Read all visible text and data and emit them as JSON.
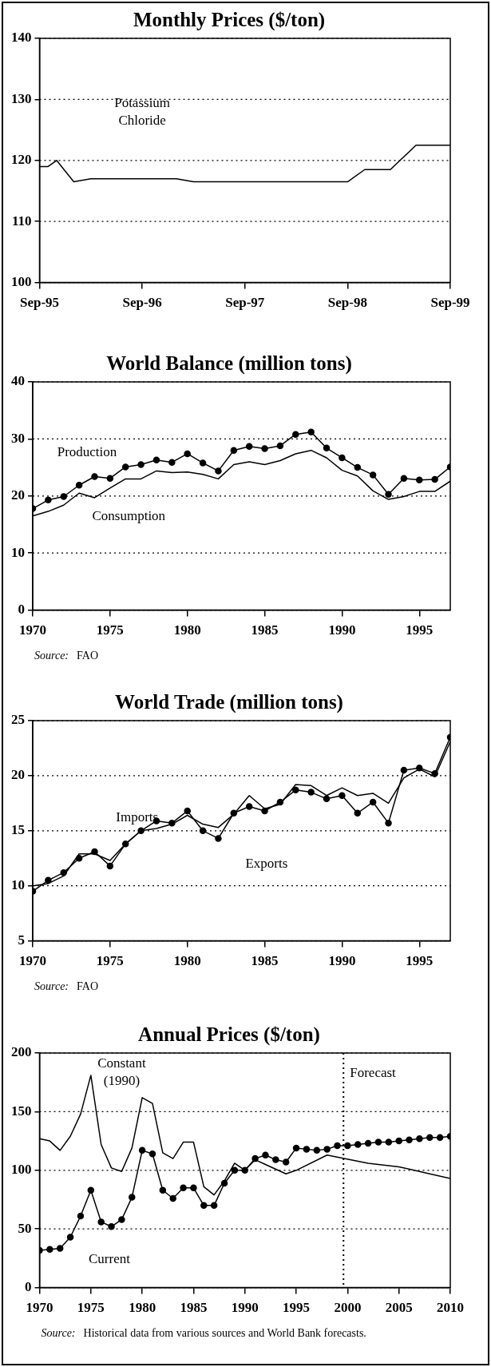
{
  "chart_data": [
    {
      "type": "line",
      "title": "Monthly Prices ($/ton)",
      "xlim": [
        "1995-09",
        "1999-09"
      ],
      "xticks": [
        {
          "value": "1995-09",
          "label": "Sep-95"
        },
        {
          "value": "1996-09",
          "label": "Sep-96"
        },
        {
          "value": "1997-09",
          "label": "Sep-97"
        },
        {
          "value": "1998-09",
          "label": "Sep-98"
        },
        {
          "value": "1999-09",
          "label": "Sep-99"
        }
      ],
      "ylim": [
        100,
        140
      ],
      "yticks": [
        100,
        110,
        120,
        130,
        140
      ],
      "grid": "y",
      "legend": false,
      "series": [
        {
          "name": "Potassium Chloride",
          "color": "#000000",
          "marker": "none",
          "x": [
            "1995-09",
            "1995-10",
            "1995-11",
            "1996-01",
            "1996-03",
            "1997-01",
            "1997-03",
            "1998-09",
            "1998-11",
            "1999-02",
            "1999-05",
            "1999-09"
          ],
          "values": [
            119,
            119,
            120,
            116.5,
            117,
            117,
            116.5,
            116.5,
            118.5,
            118.5,
            122.5,
            122.5
          ]
        }
      ]
    },
    {
      "type": "line",
      "title": "World Balance (million tons)",
      "xlim": [
        1970,
        1997
      ],
      "xticks": [
        1970,
        1975,
        1980,
        1985,
        1990,
        1995
      ],
      "ylim": [
        0,
        40
      ],
      "yticks": [
        0,
        10,
        20,
        30,
        40
      ],
      "grid": "y",
      "legend": false,
      "annotations": [
        "Source:  FAO"
      ],
      "x": [
        1970,
        1971,
        1972,
        1973,
        1974,
        1975,
        1976,
        1977,
        1978,
        1979,
        1980,
        1981,
        1982,
        1983,
        1984,
        1985,
        1986,
        1987,
        1988,
        1989,
        1990,
        1991,
        1992,
        1993,
        1994,
        1995,
        1996,
        1997
      ],
      "series": [
        {
          "name": "Production",
          "color": "#000000",
          "marker": "circle",
          "values": [
            17.8,
            19.3,
            19.9,
            21.9,
            23.4,
            23.1,
            25.1,
            25.5,
            26.3,
            25.9,
            27.4,
            25.8,
            24.4,
            28.0,
            28.7,
            28.3,
            28.8,
            30.8,
            31.2,
            28.4,
            26.7,
            25.0,
            23.7,
            20.3,
            23.1,
            22.8,
            22.9,
            25.1
          ]
        },
        {
          "name": "Consumption",
          "color": "#000000",
          "marker": "none",
          "values": [
            16.5,
            17.3,
            18.4,
            20.5,
            19.7,
            21.4,
            23.0,
            23.0,
            24.4,
            24.1,
            24.2,
            23.8,
            23.0,
            25.5,
            26.0,
            25.5,
            26.2,
            27.4,
            28.0,
            26.7,
            24.5,
            23.5,
            20.9,
            19.4,
            19.9,
            20.8,
            20.8,
            22.6
          ]
        }
      ]
    },
    {
      "type": "line",
      "title": "World Trade (million tons)",
      "xlim": [
        1970,
        1997
      ],
      "xticks": [
        1970,
        1975,
        1980,
        1985,
        1990,
        1995
      ],
      "ylim": [
        5,
        25
      ],
      "yticks": [
        5,
        10,
        15,
        20,
        25
      ],
      "grid": "y",
      "legend": false,
      "annotations": [
        "Source:  FAO"
      ],
      "x": [
        1970,
        1971,
        1972,
        1973,
        1974,
        1975,
        1976,
        1977,
        1978,
        1979,
        1980,
        1981,
        1982,
        1983,
        1984,
        1985,
        1986,
        1987,
        1988,
        1989,
        1990,
        1991,
        1992,
        1993,
        1994,
        1995,
        1996,
        1997
      ],
      "series": [
        {
          "name": "Imports",
          "color": "#000000",
          "marker": "none",
          "values": [
            10.0,
            10.2,
            10.9,
            12.9,
            12.9,
            12.3,
            13.8,
            15.0,
            15.2,
            15.6,
            16.4,
            15.6,
            15.3,
            16.5,
            18.2,
            17.0,
            17.4,
            19.2,
            19.1,
            18.2,
            18.9,
            18.2,
            18.4,
            17.5,
            19.8,
            20.6,
            19.9,
            23.1
          ]
        },
        {
          "name": "Exports",
          "color": "#000000",
          "marker": "circle",
          "values": [
            9.5,
            10.5,
            11.2,
            12.5,
            13.1,
            11.8,
            13.8,
            15.0,
            15.9,
            15.7,
            16.8,
            15.0,
            14.3,
            16.6,
            17.2,
            16.8,
            17.6,
            18.7,
            18.5,
            17.9,
            18.2,
            16.6,
            17.6,
            15.7,
            20.5,
            20.7,
            20.2,
            23.5
          ]
        }
      ]
    },
    {
      "type": "line",
      "title": "Annual Prices ($/ton)",
      "xlim": [
        1970,
        2010
      ],
      "xticks": [
        1970,
        1975,
        1980,
        1985,
        1990,
        1995,
        2000,
        2005,
        2010
      ],
      "ylim": [
        0,
        200
      ],
      "yticks": [
        0,
        50,
        100,
        150,
        200
      ],
      "grid": "y",
      "legend": false,
      "annotations": [
        "Source:  Historical data from various sources and World Bank forecasts."
      ],
      "ref_lines": [
        {
          "axis": "x",
          "value": 1999.6,
          "label": "Forecast",
          "line_style": "dotted"
        }
      ],
      "series": [
        {
          "name": "Constant (1990)",
          "color": "#000000",
          "marker": "none",
          "x": [
            1970,
            1971,
            1972,
            1973,
            1974,
            1975,
            1976,
            1977,
            1978,
            1979,
            1980,
            1981,
            1982,
            1983,
            1984,
            1985,
            1986,
            1987,
            1988,
            1989,
            1990,
            1991,
            1992,
            1994,
            1995,
            1998,
            2002,
            2005,
            2008,
            2010
          ],
          "values": [
            127,
            125,
            117,
            129,
            148,
            181,
            122,
            102,
            99,
            119,
            162,
            157,
            115,
            110,
            124,
            124,
            86,
            79,
            91,
            106,
            100,
            109,
            105,
            97,
            100,
            113,
            106,
            103,
            97,
            93
          ]
        },
        {
          "name": "Current",
          "color": "#000000",
          "marker": "circle",
          "x": [
            1970,
            1971,
            1972,
            1973,
            1974,
            1975,
            1976,
            1977,
            1978,
            1979,
            1980,
            1981,
            1982,
            1983,
            1984,
            1985,
            1986,
            1987,
            1988,
            1989,
            1990,
            1991,
            1992,
            1993,
            1994,
            1995,
            1996,
            1997,
            1998,
            1999,
            2000,
            2001,
            2002,
            2003,
            2004,
            2005,
            2006,
            2007,
            2008,
            2009,
            2010
          ],
          "values": [
            31.7,
            32.6,
            33.4,
            43,
            61,
            83,
            56,
            52,
            58,
            77,
            117,
            114,
            83,
            76,
            85,
            85,
            70,
            70,
            89,
            100,
            100,
            110,
            113,
            109,
            107,
            119,
            118,
            117,
            118,
            121,
            121,
            122,
            123,
            124,
            124,
            125,
            126,
            127,
            128,
            128,
            129
          ]
        }
      ]
    }
  ]
}
